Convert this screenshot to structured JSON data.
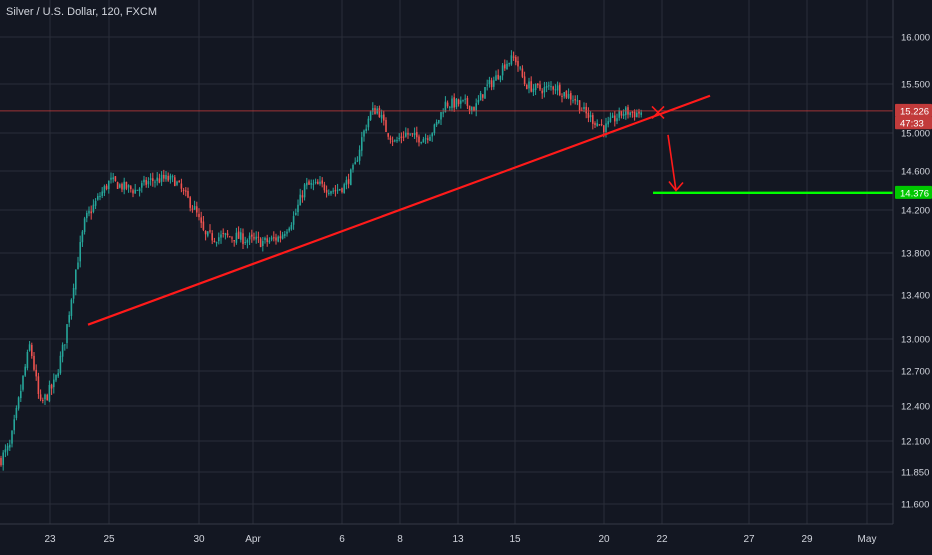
{
  "title": "Silver / U.S. Dollar, 120, FXCM",
  "colors": {
    "background": "#131722",
    "grid": "#2a2e39",
    "up": "#26a69a",
    "down": "#ef5350",
    "text": "#d1d4dc",
    "trendline": "#ff1a1a",
    "target": "#00ff00",
    "price_line": "#c23b3b"
  },
  "chart_data": {
    "type": "candlestick",
    "title": "Silver / U.S. Dollar, 120, FXCM",
    "xlabel": "",
    "ylabel": "",
    "ylim": [
      11.5,
      16.2
    ],
    "y_scale": "log",
    "grid": true,
    "y_ticks": [
      "16.000",
      "15.500",
      "15.000",
      "14.600",
      "14.200",
      "13.800",
      "13.400",
      "13.000",
      "12.700",
      "12.400",
      "12.100",
      "11.850",
      "11.600"
    ],
    "x_ticks": [
      "23",
      "25",
      "30",
      "Apr",
      "6",
      "8",
      "13",
      "15",
      "20",
      "22",
      "27",
      "29",
      "May"
    ],
    "series": [
      {
        "type": "candlestick",
        "price_path": [
          [
            0,
            11.95
          ],
          [
            10,
            12.05
          ],
          [
            20,
            12.5
          ],
          [
            30,
            12.95
          ],
          [
            40,
            12.4
          ],
          [
            55,
            12.6
          ],
          [
            65,
            13.0
          ],
          [
            75,
            13.6
          ],
          [
            85,
            14.1
          ],
          [
            100,
            14.35
          ],
          [
            110,
            14.5
          ],
          [
            120,
            14.45
          ],
          [
            135,
            14.4
          ],
          [
            150,
            14.5
          ],
          [
            165,
            14.52
          ],
          [
            175,
            14.5
          ],
          [
            185,
            14.35
          ],
          [
            195,
            14.2
          ],
          [
            205,
            13.95
          ],
          [
            220,
            13.95
          ],
          [
            235,
            13.95
          ],
          [
            250,
            13.92
          ],
          [
            265,
            13.9
          ],
          [
            280,
            13.95
          ],
          [
            295,
            14.15
          ],
          [
            305,
            14.45
          ],
          [
            320,
            14.45
          ],
          [
            335,
            14.4
          ],
          [
            345,
            14.45
          ],
          [
            355,
            14.65
          ],
          [
            362,
            14.95
          ],
          [
            370,
            15.2
          ],
          [
            378,
            15.25
          ],
          [
            385,
            15.05
          ],
          [
            395,
            14.9
          ],
          [
            405,
            15.0
          ],
          [
            415,
            14.95
          ],
          [
            425,
            14.95
          ],
          [
            435,
            15.05
          ],
          [
            445,
            15.3
          ],
          [
            455,
            15.3
          ],
          [
            465,
            15.3
          ],
          [
            475,
            15.25
          ],
          [
            485,
            15.45
          ],
          [
            495,
            15.55
          ],
          [
            505,
            15.72
          ],
          [
            515,
            15.78
          ],
          [
            525,
            15.5
          ],
          [
            535,
            15.45
          ],
          [
            545,
            15.45
          ],
          [
            555,
            15.48
          ],
          [
            565,
            15.4
          ],
          [
            575,
            15.35
          ],
          [
            585,
            15.2
          ],
          [
            595,
            15.12
          ],
          [
            605,
            15.05
          ],
          [
            615,
            15.15
          ],
          [
            625,
            15.22
          ],
          [
            635,
            15.2
          ],
          [
            642,
            15.21
          ]
        ]
      }
    ],
    "annotations": {
      "trendline": {
        "from": [
          88,
          13.13
        ],
        "to": [
          710,
          15.38
        ]
      },
      "cross_mark": {
        "at": [
          658,
          15.21
        ]
      },
      "arrow": {
        "from": [
          668,
          14.98
        ],
        "to": [
          676,
          14.4
        ]
      },
      "target_line": {
        "price": 14.376,
        "from_x": 653
      }
    },
    "price_tags": [
      {
        "label": "15.226",
        "price": 15.226,
        "color": "#c23b3b"
      },
      {
        "label": "47:33",
        "price": 15.1,
        "color": "#c23b3b"
      },
      {
        "label": "14.376",
        "price": 14.376,
        "color": "#00c800"
      }
    ],
    "last_price": 15.226,
    "target_price": 14.376
  }
}
